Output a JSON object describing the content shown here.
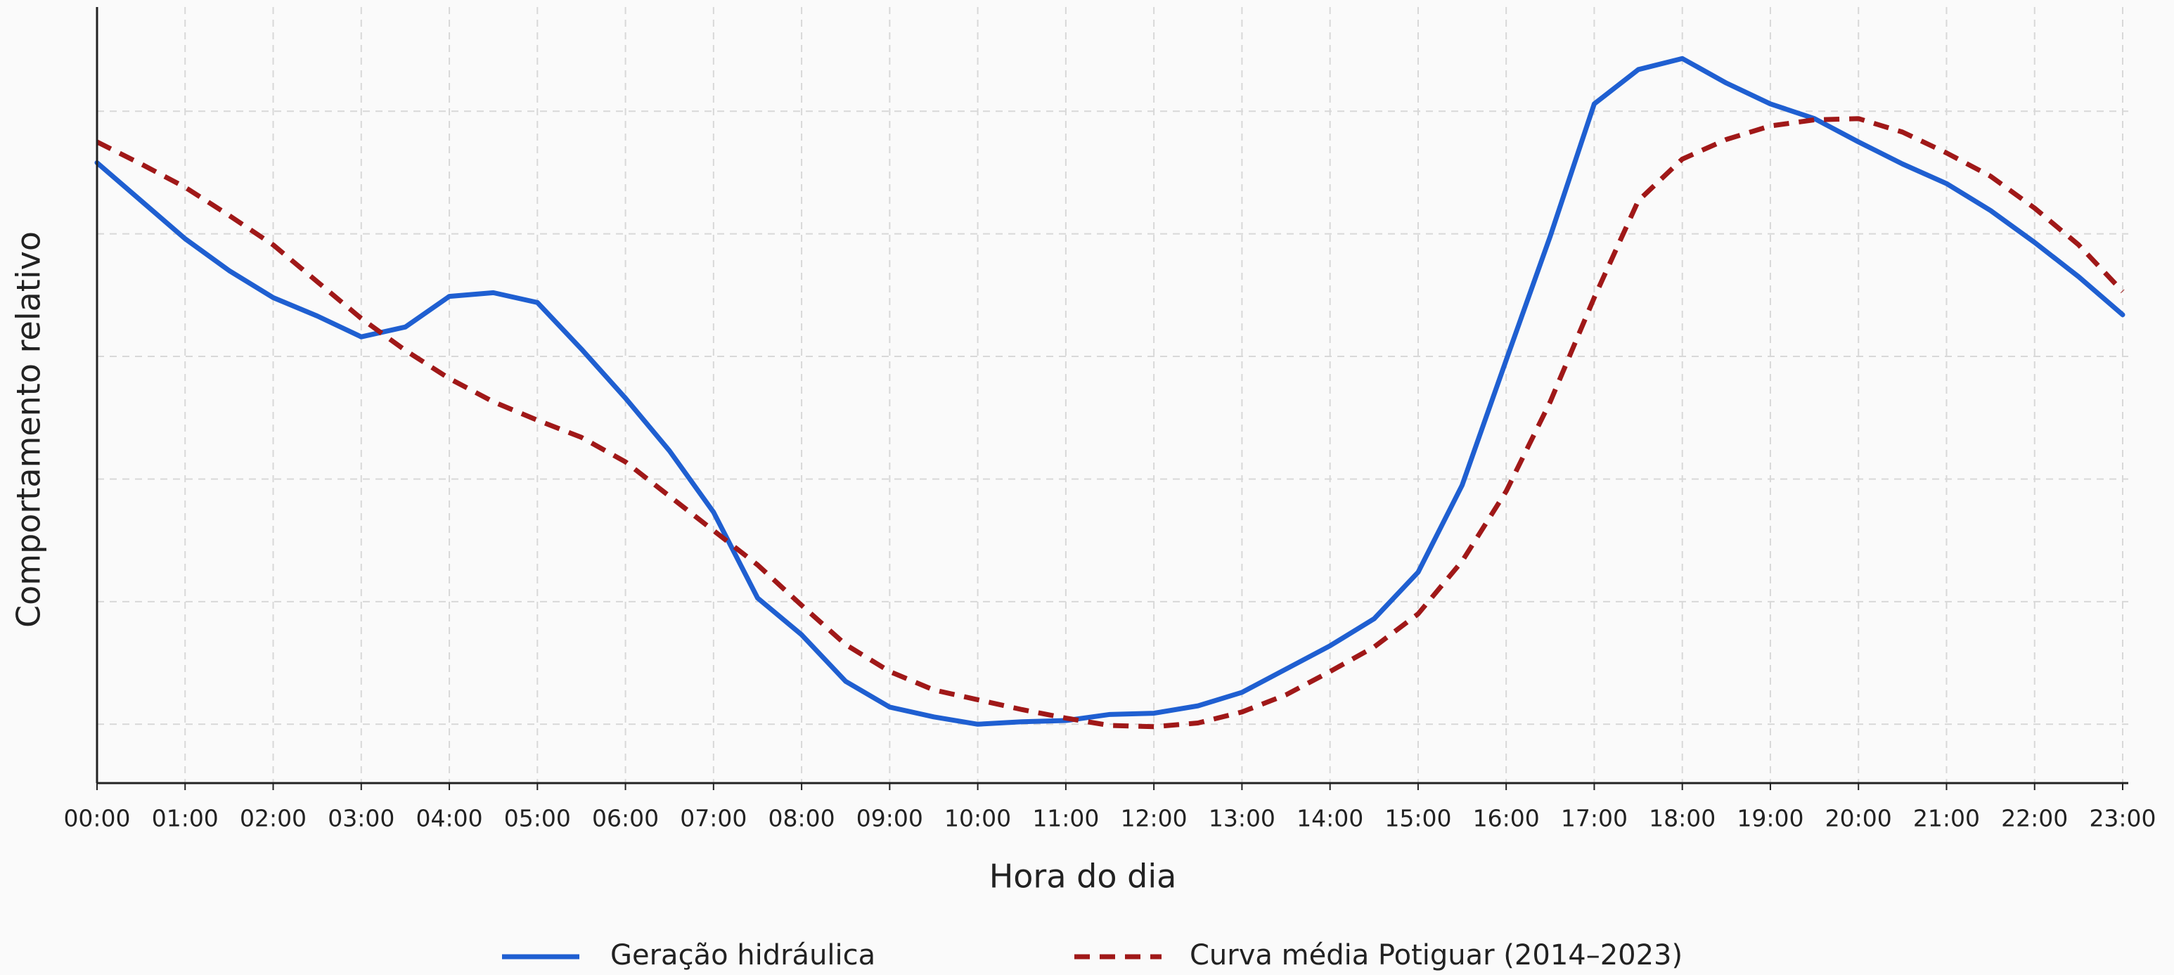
{
  "chart_data": {
    "type": "line",
    "x_label": "Hora do dia",
    "y_label": "Comportamento relativo",
    "x": [
      0,
      0.5,
      1,
      1.5,
      2,
      2.5,
      3,
      3.5,
      4,
      4.5,
      5,
      5.5,
      6,
      6.5,
      7,
      7.5,
      8,
      8.5,
      9,
      9.5,
      10,
      10.5,
      11,
      11.5,
      12,
      12.5,
      13,
      13.5,
      14,
      14.5,
      15,
      15.5,
      16,
      16.5,
      17,
      17.5,
      18,
      18.5,
      19,
      19.5,
      20,
      20.5,
      21,
      21.5,
      22,
      22.5,
      23
    ],
    "series": [
      {
        "name": "Geração hidráulica",
        "color": "#1f5fd1",
        "dashed": false,
        "values": [
          4.58,
          4.27,
          3.96,
          3.7,
          3.48,
          3.33,
          3.16,
          3.24,
          3.49,
          3.52,
          3.44,
          3.06,
          2.66,
          2.23,
          1.73,
          1.03,
          0.73,
          0.35,
          0.14,
          0.06,
          0.0,
          0.02,
          0.03,
          0.08,
          0.09,
          0.15,
          0.26,
          0.45,
          0.64,
          0.86,
          1.24,
          1.95,
          2.97,
          3.98,
          5.06,
          5.34,
          5.43,
          5.23,
          5.06,
          4.94,
          4.75,
          4.57,
          4.41,
          4.19,
          3.93,
          3.65,
          3.34
        ]
      },
      {
        "name": "Curva média Potiguar (2014–2023)",
        "color": "#a01818",
        "dashed": true,
        "values": [
          4.75,
          4.57,
          4.38,
          4.15,
          3.91,
          3.61,
          3.31,
          3.05,
          2.82,
          2.63,
          2.48,
          2.34,
          2.14,
          1.86,
          1.58,
          1.3,
          0.97,
          0.65,
          0.43,
          0.28,
          0.2,
          0.12,
          0.05,
          -0.01,
          -0.02,
          0.01,
          0.1,
          0.24,
          0.43,
          0.63,
          0.9,
          1.33,
          1.9,
          2.63,
          3.48,
          4.27,
          4.61,
          4.77,
          4.88,
          4.93,
          4.94,
          4.83,
          4.66,
          4.47,
          4.21,
          3.91,
          3.53
        ]
      }
    ],
    "xlim": [
      0,
      23
    ],
    "xticks": [
      {
        "value": 0,
        "label": "00:00"
      },
      {
        "value": 1,
        "label": "01:00"
      },
      {
        "value": 2,
        "label": "02:00"
      },
      {
        "value": 3,
        "label": "03:00"
      },
      {
        "value": 4,
        "label": "04:00"
      },
      {
        "value": 5,
        "label": "05:00"
      },
      {
        "value": 6,
        "label": "06:00"
      },
      {
        "value": 7,
        "label": "07:00"
      },
      {
        "value": 8,
        "label": "08:00"
      },
      {
        "value": 9,
        "label": "09:00"
      },
      {
        "value": 10,
        "label": "10:00"
      },
      {
        "value": 11,
        "label": "11:00"
      },
      {
        "value": 12,
        "label": "12:00"
      },
      {
        "value": 13,
        "label": "13:00"
      },
      {
        "value": 14,
        "label": "14:00"
      },
      {
        "value": 15,
        "label": "15:00"
      },
      {
        "value": 16,
        "label": "16:00"
      },
      {
        "value": 17,
        "label": "17:00"
      },
      {
        "value": 18,
        "label": "18:00"
      },
      {
        "value": 19,
        "label": "19:00"
      },
      {
        "value": 20,
        "label": "20:00"
      },
      {
        "value": 21,
        "label": "21:00"
      },
      {
        "value": 22,
        "label": "22:00"
      },
      {
        "value": 23,
        "label": "23:00"
      }
    ],
    "ylim": [
      -0.48,
      5.85
    ],
    "yticks": [
      0,
      1,
      2,
      3,
      4,
      5
    ],
    "grid": true,
    "legend": "bottom"
  }
}
